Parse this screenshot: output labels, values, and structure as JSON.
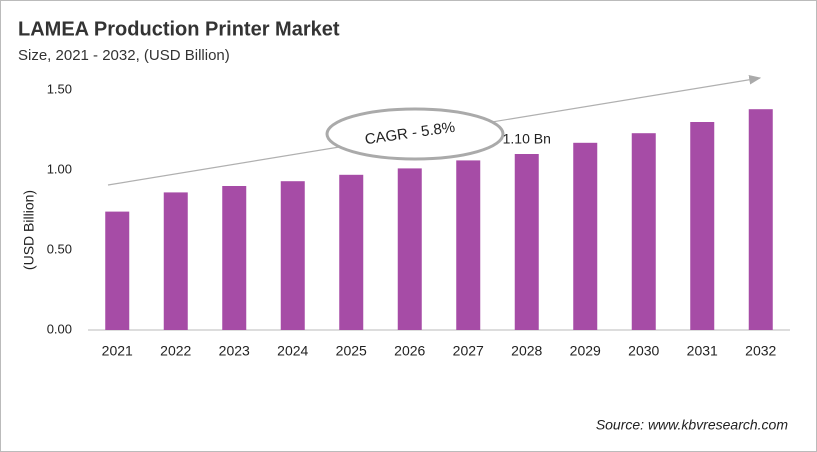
{
  "chart_data": {
    "type": "bar",
    "title": "LAMEA Production Printer Market",
    "subtitle": "Size, 2021 - 2032, (USD Billion)",
    "y_label": "(USD Billion)",
    "annotation": "CAGR - 5.8%",
    "source": "Source: www.kbvresearch.com",
    "categories": [
      "2021",
      "2022",
      "2023",
      "2024",
      "2025",
      "2026",
      "2027",
      "2028",
      "2029",
      "2030",
      "2031",
      "2032"
    ],
    "values": [
      0.74,
      0.86,
      0.9,
      0.93,
      0.97,
      1.01,
      1.06,
      1.1,
      1.17,
      1.23,
      1.3,
      1.38
    ],
    "value_labels": [
      null,
      null,
      null,
      null,
      null,
      null,
      null,
      "1.10 Bn",
      null,
      null,
      null,
      null
    ],
    "color": "#a64ca6",
    "ylim": [
      0,
      1.5
    ],
    "yticks": [
      {
        "value": 0,
        "label": "0.00"
      },
      {
        "value": 0.5,
        "label": "0.50"
      },
      {
        "value": 1,
        "label": "1.00"
      },
      {
        "value": 1.5,
        "label": "1.50"
      }
    ],
    "grid": false
  }
}
